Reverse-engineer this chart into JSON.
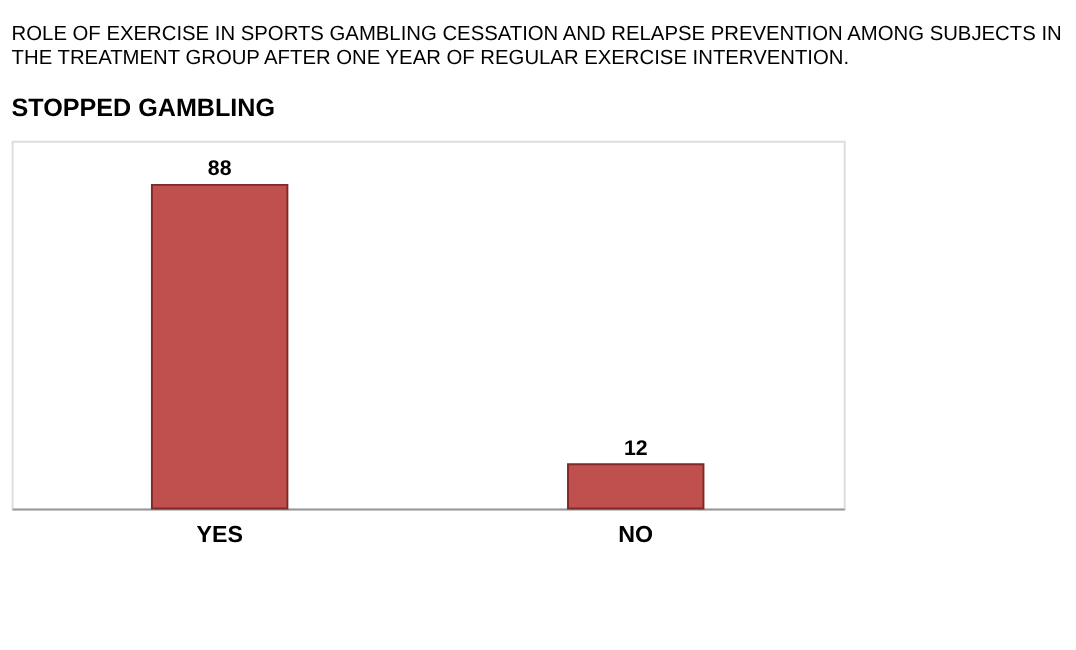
{
  "chart_data": {
    "type": "bar",
    "title": "ROLE OF EXERCISE IN SPORTS GAMBLING CESSATION AND RELAPSE PREVENTION AMONG SUBJECTS IN THE TREATMENT GROUP AFTER ONE YEAR OF REGULAR EXERCISE INTERVENTION.",
    "subtitle": "STOPPED GAMBLING",
    "categories": [
      "YES",
      "NO"
    ],
    "values": [
      88,
      12
    ],
    "color": "#c0504d",
    "data_labels": true,
    "ylim": [
      0,
      100
    ]
  }
}
